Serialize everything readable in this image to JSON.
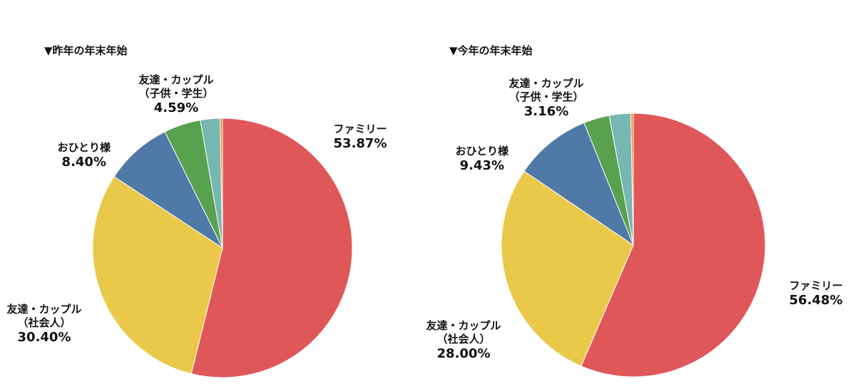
{
  "chart_data": [
    {
      "type": "pie",
      "title": "▼昨年の年末年始",
      "slices": [
        {
          "name": "ファミリー",
          "name_lines": [
            "ファミリー"
          ],
          "value": 53.87,
          "pct_label": "53.87%",
          "color": "#e0575a"
        },
        {
          "name": "友達・カップル（社会人）",
          "name_lines": [
            "友達・カップル",
            "（社会人）"
          ],
          "value": 30.4,
          "pct_label": "30.40%",
          "color": "#e9c84a"
        },
        {
          "name": "おひとり様",
          "name_lines": [
            "おひとり様"
          ],
          "value": 8.4,
          "pct_label": "8.40%",
          "color": "#4f79a7"
        },
        {
          "name": "友達・カップル（子供・学生）",
          "name_lines": [
            "友達・カップル",
            "（子供・学生）"
          ],
          "value": 4.59,
          "pct_label": "4.59%",
          "color": "#59a14f"
        },
        {
          "name": "",
          "name_lines": [],
          "value": 2.44,
          "pct_label": "",
          "color": "#76b7b2"
        },
        {
          "name": "",
          "name_lines": [],
          "value": 0.3,
          "pct_label": "",
          "color": "#f28e2b"
        }
      ]
    },
    {
      "type": "pie",
      "title": "▼今年の年末年始",
      "slices": [
        {
          "name": "ファミリー",
          "name_lines": [
            "ファミリー"
          ],
          "value": 56.48,
          "pct_label": "56.48%",
          "color": "#e0575a"
        },
        {
          "name": "友達・カップル（社会人）",
          "name_lines": [
            "友達・カップル",
            "（社会人）"
          ],
          "value": 28.0,
          "pct_label": "28.00%",
          "color": "#e9c84a"
        },
        {
          "name": "おひとり様",
          "name_lines": [
            "おひとり様"
          ],
          "value": 9.43,
          "pct_label": "9.43%",
          "color": "#4f79a7"
        },
        {
          "name": "友達・カップル（子供・学生）",
          "name_lines": [
            "友達・カップル",
            "（子供・学生）"
          ],
          "value": 3.16,
          "pct_label": "3.16%",
          "color": "#59a14f"
        },
        {
          "name": "",
          "name_lines": [],
          "value": 2.63,
          "pct_label": "",
          "color": "#76b7b2"
        },
        {
          "name": "",
          "name_lines": [],
          "value": 0.3,
          "pct_label": "",
          "color": "#f28e2b"
        }
      ]
    }
  ]
}
